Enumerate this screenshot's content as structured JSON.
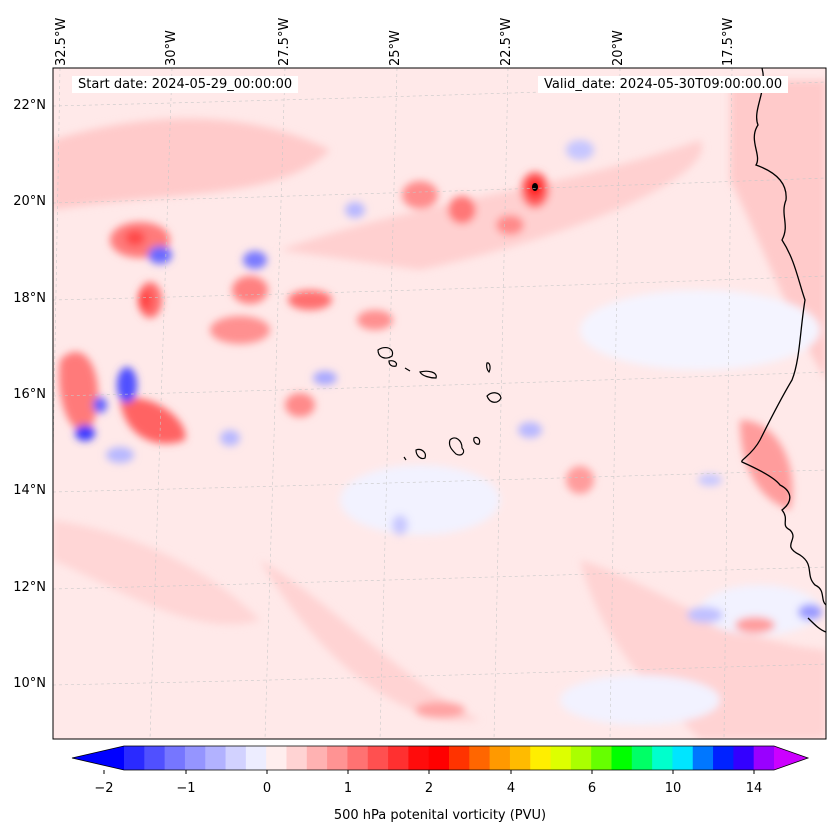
{
  "map": {
    "start_date": "Start date: 2024-05-29_00:00:00",
    "valid_date": "Valid_date: 2024-05-30T09:00:00.00",
    "lon_labels": [
      "32.5°W",
      "30°W",
      "27.5°W",
      "25°W",
      "22.5°W",
      "20°W",
      "17.5°W"
    ],
    "lat_labels": [
      "22°N",
      "20°N",
      "18°N",
      "16°N",
      "14°N",
      "12°N",
      "10°N"
    ],
    "colorbar_label": "500 hPa potenital vorticity (PVU)",
    "colorbar_ticks": [
      "−2",
      "−1",
      "0",
      "1",
      "2",
      "4",
      "6",
      "10",
      "14"
    ],
    "colorbar_colors": [
      "#0000ff",
      "#2a2aff",
      "#5050ff",
      "#7676ff",
      "#9595ff",
      "#b2b2ff",
      "#d2d2ff",
      "#ededff",
      "#ffeeee",
      "#ffd3d3",
      "#ffb2b2",
      "#ff9393",
      "#ff7272",
      "#ff5050",
      "#ff3030",
      "#ff0c0c",
      "#ff0000",
      "#ff3300",
      "#ff6600",
      "#ff9900",
      "#ffbb00",
      "#ffee00",
      "#ddff00",
      "#aaff00",
      "#66ff00",
      "#00ff00",
      "#00ff66",
      "#00ffcc",
      "#00e5ff",
      "#0077ff",
      "#0022ff",
      "#3300ff",
      "#9900ff",
      "#cc00ff"
    ]
  }
}
